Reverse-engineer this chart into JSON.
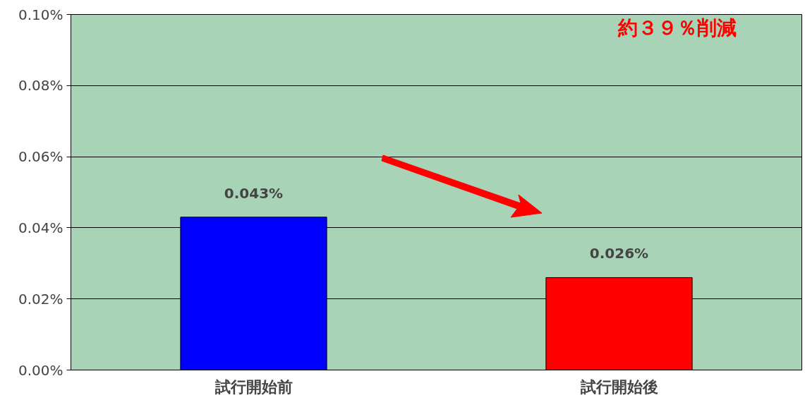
{
  "chart_data": {
    "type": "bar",
    "categories": [
      "試行開始前",
      "試行開始後"
    ],
    "values": [
      0.043,
      0.026
    ],
    "colors": [
      "#0000ff",
      "#ff0000"
    ],
    "value_labels": [
      "0.043%",
      "0.026%"
    ],
    "ylim": [
      0,
      0.1
    ],
    "yticks": [
      {
        "value": 0,
        "label": "0.00%"
      },
      {
        "value": 0.02,
        "label": "0.02%"
      },
      {
        "value": 0.04,
        "label": "0.04%"
      },
      {
        "value": 0.06,
        "label": "0.06%"
      },
      {
        "value": 0.08,
        "label": "0.08%"
      },
      {
        "value": 0.1,
        "label": "0.10%"
      }
    ],
    "grid": "y",
    "annotations": [
      "約３９％削減"
    ]
  }
}
